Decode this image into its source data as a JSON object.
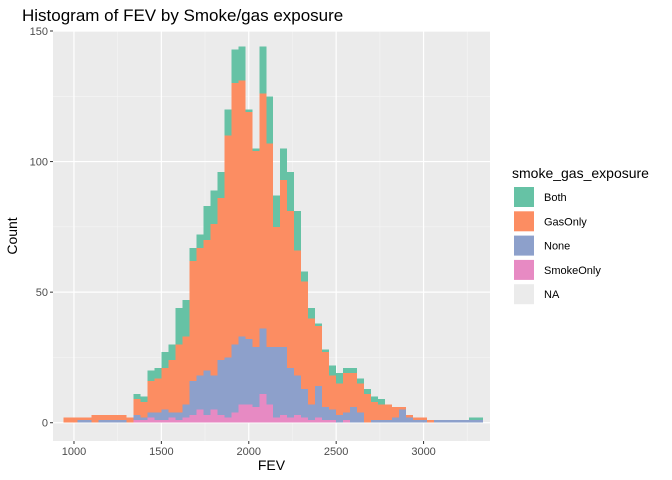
{
  "chart_data": {
    "type": "bar",
    "subtype": "stacked-histogram",
    "title": "Histogram of FEV by Smoke/gas exposure",
    "xlabel": "FEV",
    "ylabel": "Count",
    "xlim": [
      880,
      3380
    ],
    "ylim": [
      -7,
      150
    ],
    "x_ticks": [
      1000,
      1500,
      2000,
      2500,
      3000
    ],
    "y_ticks": [
      0,
      50,
      100,
      150
    ],
    "grid": true,
    "bin_width": 40,
    "bin_centers": [
      960,
      1000,
      1040,
      1080,
      1120,
      1160,
      1200,
      1240,
      1280,
      1320,
      1360,
      1400,
      1440,
      1480,
      1520,
      1560,
      1600,
      1640,
      1680,
      1720,
      1760,
      1800,
      1840,
      1880,
      1920,
      1960,
      2000,
      2040,
      2080,
      2120,
      2160,
      2200,
      2240,
      2280,
      2320,
      2360,
      2400,
      2440,
      2480,
      2520,
      2560,
      2600,
      2640,
      2680,
      2720,
      2760,
      2800,
      2840,
      2880,
      2920,
      2960,
      3000,
      3040,
      3080,
      3120,
      3160,
      3200,
      3240,
      3280,
      3320
    ],
    "legend": {
      "title": "smoke_gas_exposure",
      "position": "right"
    },
    "series": [
      {
        "name": "SmokeOnly",
        "color": "#e78ac3",
        "values": [
          0,
          0,
          0,
          0,
          0,
          0,
          0,
          0,
          0,
          0,
          1,
          1,
          2,
          1,
          1,
          2,
          1,
          2,
          3,
          5,
          3,
          5,
          3,
          2,
          4,
          7,
          7,
          6,
          11,
          7,
          2,
          3,
          2,
          3,
          2,
          1,
          2,
          1,
          1,
          0,
          1,
          0,
          0,
          0,
          0,
          0,
          0,
          0,
          0,
          0,
          0,
          0,
          0,
          0,
          0,
          0,
          0,
          0,
          0,
          0
        ]
      },
      {
        "name": "None",
        "color": "#8da0cb",
        "values": [
          0,
          0,
          1,
          1,
          0,
          1,
          1,
          1,
          1,
          0,
          2,
          1,
          2,
          3,
          4,
          2,
          3,
          5,
          13,
          13,
          17,
          13,
          21,
          23,
          26,
          26,
          25,
          23,
          25,
          22,
          27,
          26,
          19,
          15,
          11,
          6,
          12,
          5,
          4,
          3,
          3,
          6,
          4,
          0,
          1,
          1,
          1,
          2,
          5,
          2,
          1,
          1,
          0,
          1,
          1,
          1,
          1,
          1,
          1,
          1
        ]
      },
      {
        "name": "GasOnly",
        "color": "#fc8d62",
        "values": [
          2,
          2,
          1,
          1,
          3,
          2,
          2,
          2,
          2,
          2,
          6,
          6,
          12,
          13,
          16,
          20,
          26,
          26,
          46,
          49,
          50,
          58,
          62,
          85,
          100,
          98,
          87,
          75,
          90,
          78,
          46,
          64,
          60,
          48,
          41,
          33,
          23,
          21,
          13,
          12,
          15,
          13,
          11,
          11,
          7,
          6,
          6,
          4,
          1,
          1,
          1,
          1,
          1,
          0,
          0,
          0,
          0,
          0,
          0,
          0
        ]
      },
      {
        "name": "Both",
        "color": "#66c2a5",
        "values": [
          0,
          0,
          0,
          0,
          0,
          0,
          0,
          0,
          0,
          0,
          2,
          2,
          4,
          4,
          6,
          6,
          14,
          14,
          5,
          5,
          13,
          13,
          10,
          10,
          13,
          13,
          1,
          1,
          18,
          18,
          12,
          12,
          15,
          15,
          4,
          4,
          1,
          1,
          4,
          4,
          2,
          2,
          2,
          2,
          2,
          2,
          0,
          0,
          0,
          0,
          0,
          0,
          0,
          0,
          0,
          0,
          0,
          0,
          1,
          1
        ]
      },
      {
        "name": "NA",
        "color": "#ebebeb",
        "values": [
          0,
          0,
          0,
          0,
          0,
          0,
          0,
          0,
          0,
          0,
          0,
          0,
          0,
          0,
          0,
          0,
          0,
          0,
          0,
          0,
          0,
          0,
          0,
          0,
          0,
          0,
          0,
          0,
          0,
          0,
          0,
          0,
          0,
          0,
          0,
          0,
          0,
          0,
          0,
          0,
          0,
          0,
          0,
          0,
          0,
          0,
          0,
          0,
          0,
          0,
          0,
          0,
          0,
          0,
          0,
          0,
          0,
          0,
          0,
          0
        ]
      }
    ],
    "legend_order": [
      "Both",
      "GasOnly",
      "None",
      "SmokeOnly",
      "NA"
    ]
  },
  "colors": {
    "panel_background": "#ebebeb",
    "grid_major": "#ffffff",
    "legend_key_na": "#ebebeb"
  }
}
